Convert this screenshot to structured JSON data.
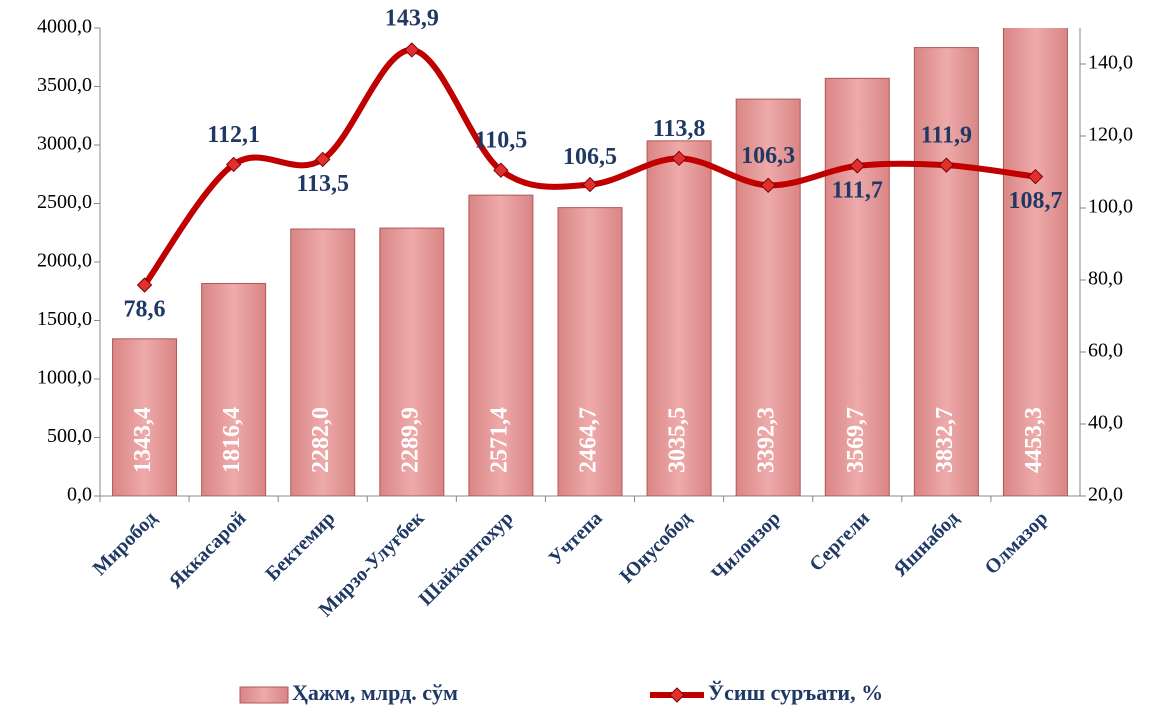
{
  "chart_data": {
    "type": "bar+line",
    "categories": [
      "Миробод",
      "Яккасарой",
      "Бектемир",
      "Мирзо-Улуғбек",
      "Шайхонтохур",
      "Учтепа",
      "Юнусобод",
      "Чилонзор",
      "Сергели",
      "Яшнабод",
      "Олмазор"
    ],
    "series": [
      {
        "name": "Ҳажм, млрд. сўм",
        "type": "bar",
        "color": "#e8a2a2",
        "axis": "y",
        "values": [
          1343.4,
          1816.4,
          2282.0,
          2289.9,
          2571.4,
          2464.7,
          3035.5,
          3392.3,
          3569.7,
          3832.7,
          4453.3
        ],
        "value_labels": [
          "1343,4",
          "1816,4",
          "2282,0",
          "2289,9",
          "2571,4",
          "2464,7",
          "3035,5",
          "3392,3",
          "3569,7",
          "3832,7",
          "4453,3"
        ]
      },
      {
        "name": "Ўсиш суръати, %",
        "type": "line",
        "color": "#c00000",
        "axis": "y2",
        "values": [
          78.6,
          112.1,
          113.5,
          143.9,
          110.5,
          106.5,
          113.8,
          106.3,
          111.7,
          111.9,
          108.7
        ],
        "value_labels": [
          "78,6",
          "112,1",
          "113,5",
          "143,9",
          "110,5",
          "106,5",
          "113,8",
          "106,3",
          "111,7",
          "111,9",
          "108,7"
        ]
      }
    ],
    "ylim": [
      0,
      4000
    ],
    "yticks": [
      {
        "value": 0,
        "label": "0,0"
      },
      {
        "value": 500,
        "label": "500,0"
      },
      {
        "value": 1000,
        "label": "1000,0"
      },
      {
        "value": 1500,
        "label": "1500,0"
      },
      {
        "value": 2000,
        "label": "2000,0"
      },
      {
        "value": 2500,
        "label": "2500,0"
      },
      {
        "value": 3000,
        "label": "3000,0"
      },
      {
        "value": 3500,
        "label": "3500,0"
      },
      {
        "value": 4000,
        "label": "4000,0"
      }
    ],
    "y2lim": [
      20,
      150
    ],
    "y2ticks": [
      {
        "value": 20,
        "label": "20,0"
      },
      {
        "value": 40,
        "label": "40,0"
      },
      {
        "value": 60,
        "label": "60,0"
      },
      {
        "value": 80,
        "label": "80,0"
      },
      {
        "value": 100,
        "label": "100,0"
      },
      {
        "value": 120,
        "label": "120,0"
      },
      {
        "value": 140,
        "label": "140,0"
      }
    ],
    "legend": "bottom"
  }
}
